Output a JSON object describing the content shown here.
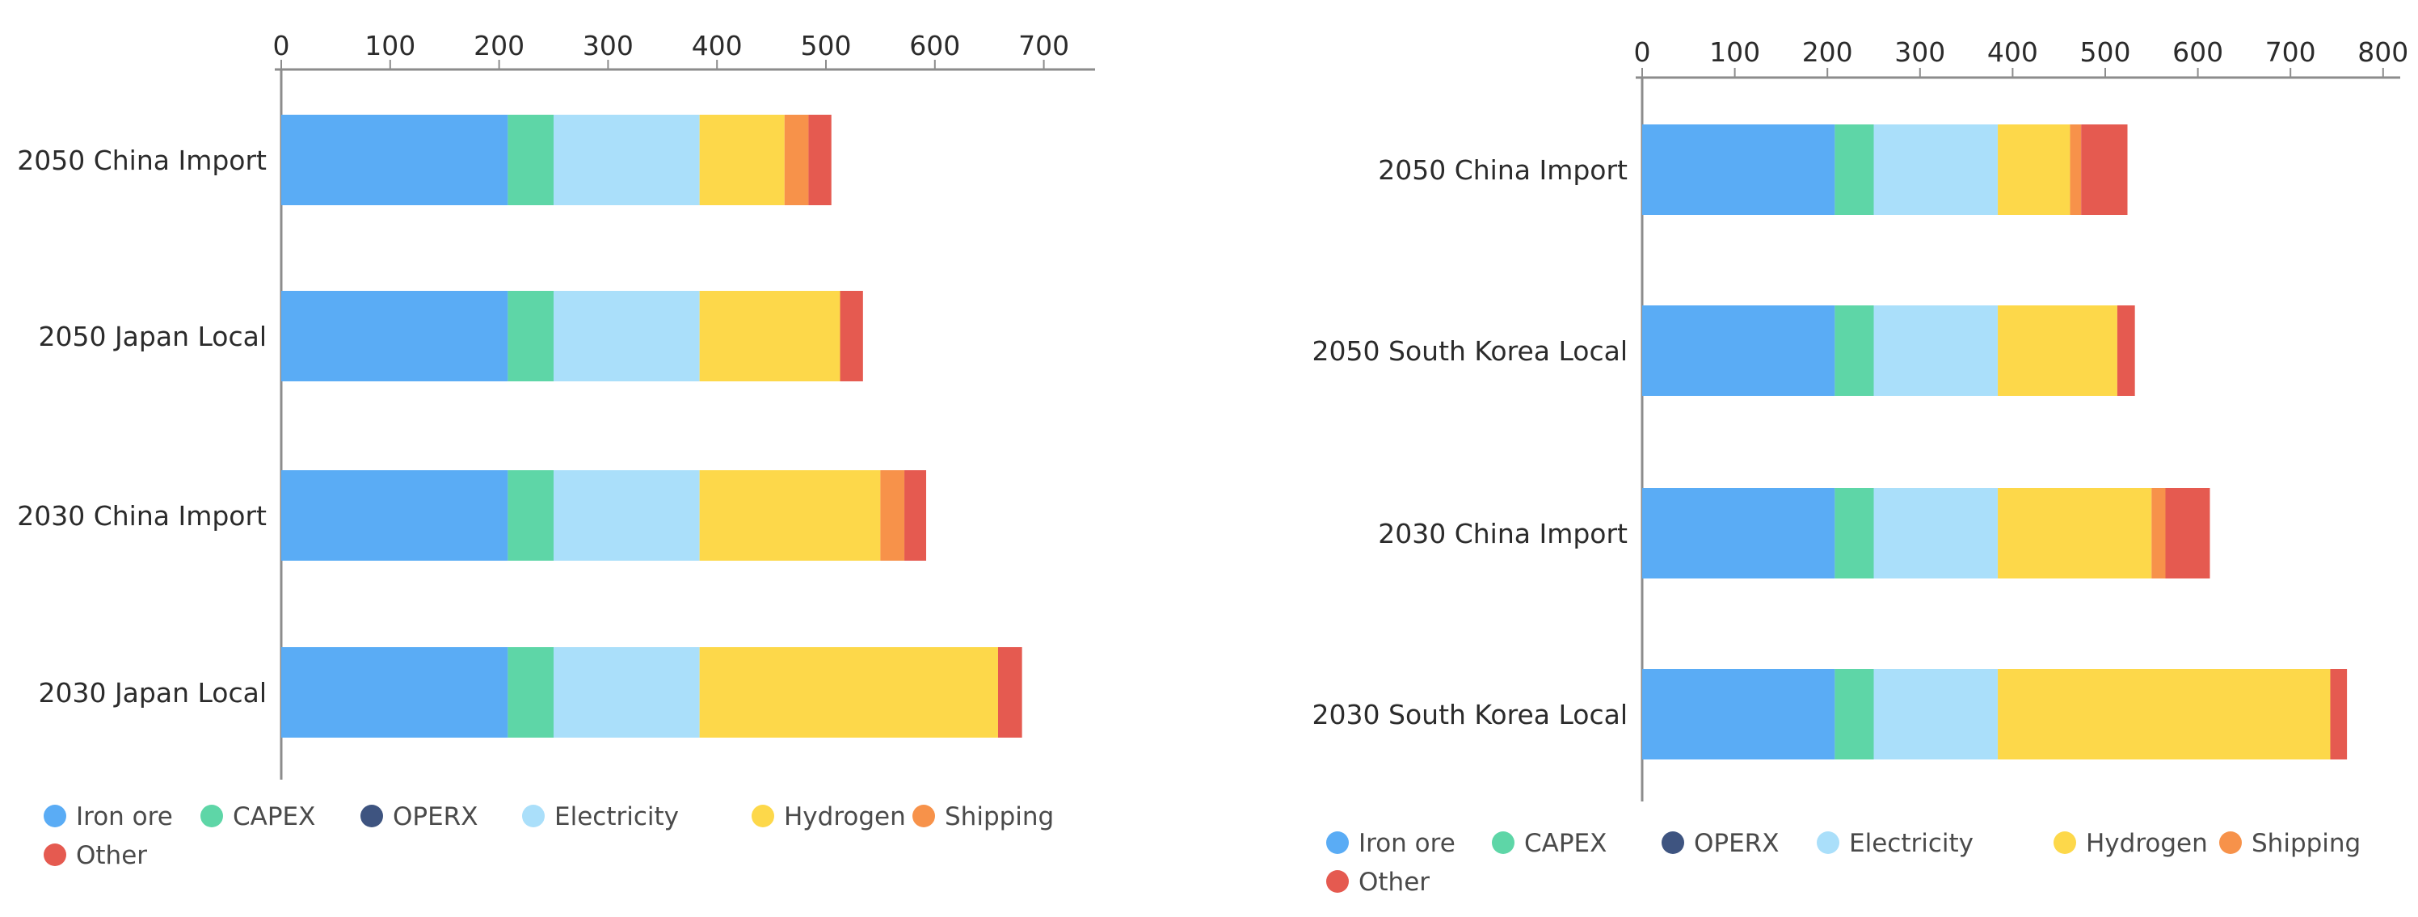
{
  "chart_data": [
    {
      "type": "bar",
      "orientation": "horizontal",
      "stacked": true,
      "categories": [
        "2050 China Import",
        "2050 Japan Local",
        "2030 China Import",
        "2030 Japan Local"
      ],
      "xlim": [
        0,
        750
      ],
      "xticks": [
        0,
        100,
        200,
        300,
        400,
        500,
        600,
        700
      ],
      "grid": false,
      "legend": "bottom",
      "series": [
        {
          "name": "Iron ore",
          "color": "#5aacf5",
          "values": [
            208,
            208,
            208,
            208
          ]
        },
        {
          "name": "CAPEX",
          "color": "#5ed6a7",
          "values": [
            42,
            42,
            42,
            42
          ]
        },
        {
          "name": "OPERX",
          "color": "#3e5480",
          "values": [
            0,
            0,
            0,
            0
          ]
        },
        {
          "name": "Electricity",
          "color": "#aadffa",
          "values": [
            134,
            134,
            134,
            134
          ]
        },
        {
          "name": "Hydrogen",
          "color": "#fdd84a",
          "values": [
            78,
            129,
            166,
            274
          ]
        },
        {
          "name": "Shipping",
          "color": "#f7924a",
          "values": [
            22,
            0,
            22,
            0
          ]
        },
        {
          "name": "Other",
          "color": "#e55a50",
          "values": [
            21,
            21,
            20,
            22
          ]
        }
      ]
    },
    {
      "type": "bar",
      "orientation": "horizontal",
      "stacked": true,
      "categories": [
        "2050 China Import",
        "2050 South Korea Local",
        "2030 China Import",
        "2030 South Korea Local"
      ],
      "xlim": [
        0,
        850
      ],
      "xticks": [
        0,
        100,
        200,
        300,
        400,
        500,
        600,
        700,
        800
      ],
      "grid": false,
      "legend": "bottom",
      "series": [
        {
          "name": "Iron ore",
          "color": "#5aacf5",
          "values": [
            208,
            208,
            208,
            208
          ]
        },
        {
          "name": "CAPEX",
          "color": "#5ed6a7",
          "values": [
            42,
            42,
            42,
            42
          ]
        },
        {
          "name": "OPERX",
          "color": "#3e5480",
          "values": [
            0,
            0,
            0,
            0
          ]
        },
        {
          "name": "Electricity",
          "color": "#aadffa",
          "values": [
            134,
            134,
            134,
            134
          ]
        },
        {
          "name": "Hydrogen",
          "color": "#fdd84a",
          "values": [
            78,
            129,
            166,
            359
          ]
        },
        {
          "name": "Shipping",
          "color": "#f7924a",
          "values": [
            12,
            0,
            15,
            0
          ]
        },
        {
          "name": "Other",
          "color": "#e55a50",
          "values": [
            50,
            19,
            48,
            18
          ]
        }
      ]
    }
  ]
}
